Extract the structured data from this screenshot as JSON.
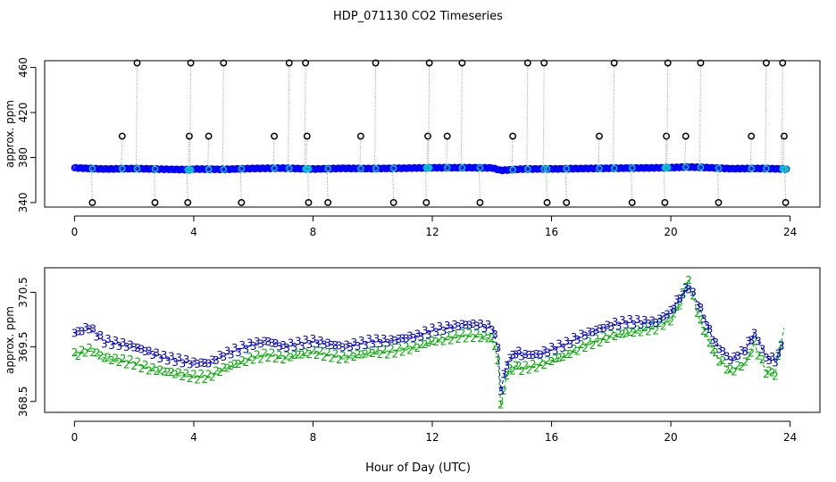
{
  "title": "HDP_071130  CO2 Timeseries",
  "xlabel": "Hour of Day (UTC)",
  "chart_data": [
    {
      "type": "scatter",
      "ylabel": "approx. ppm",
      "xlim": [
        -1,
        25
      ],
      "ylim": [
        336,
        466
      ],
      "x_ticks": [
        "0",
        "4",
        "8",
        "12",
        "16",
        "20",
        "24"
      ],
      "y_ticks": [
        "340",
        "380",
        "420",
        "460"
      ],
      "baseline_series": {
        "name": "",
        "color": "#0000ff",
        "marker": "open-circle",
        "x_range": [
          0,
          23.9
        ],
        "points": [
          [
            0.0,
            370.8
          ],
          [
            1.0,
            369.8
          ],
          [
            2.0,
            370.2
          ],
          [
            3.0,
            369.6
          ],
          [
            3.9,
            369.2
          ],
          [
            4.0,
            369.8
          ],
          [
            5.0,
            369.5
          ],
          [
            6.0,
            370.3
          ],
          [
            7.0,
            370.6
          ],
          [
            7.8,
            369.9
          ],
          [
            8.0,
            369.8
          ],
          [
            9.0,
            370.4
          ],
          [
            10.0,
            370.2
          ],
          [
            11.0,
            370.5
          ],
          [
            12.0,
            370.9
          ],
          [
            13.0,
            371.0
          ],
          [
            14.0,
            370.8
          ],
          [
            14.3,
            368.6
          ],
          [
            15.0,
            369.8
          ],
          [
            16.0,
            369.9
          ],
          [
            17.0,
            370.2
          ],
          [
            18.0,
            370.5
          ],
          [
            19.0,
            370.7
          ],
          [
            20.0,
            371.0
          ],
          [
            20.5,
            371.6
          ],
          [
            21.0,
            371.3
          ],
          [
            22.0,
            370.1
          ],
          [
            23.0,
            370.3
          ],
          [
            23.9,
            369.8
          ]
        ]
      },
      "spikes": [
        {
          "x": 0.6,
          "y": 340
        },
        {
          "x": 1.6,
          "y": 399
        },
        {
          "x": 2.1,
          "y": 464
        },
        {
          "x": 2.7,
          "y": 340
        },
        {
          "x": 3.8,
          "y": 340
        },
        {
          "x": 3.85,
          "y": 399
        },
        {
          "x": 3.9,
          "y": 464
        },
        {
          "x": 4.5,
          "y": 399
        },
        {
          "x": 5.0,
          "y": 464
        },
        {
          "x": 5.6,
          "y": 340
        },
        {
          "x": 6.7,
          "y": 399
        },
        {
          "x": 7.2,
          "y": 464
        },
        {
          "x": 7.75,
          "y": 464
        },
        {
          "x": 7.8,
          "y": 399
        },
        {
          "x": 7.85,
          "y": 340
        },
        {
          "x": 8.5,
          "y": 340
        },
        {
          "x": 9.6,
          "y": 399
        },
        {
          "x": 10.1,
          "y": 464
        },
        {
          "x": 10.7,
          "y": 340
        },
        {
          "x": 11.8,
          "y": 340
        },
        {
          "x": 11.85,
          "y": 399
        },
        {
          "x": 11.9,
          "y": 464
        },
        {
          "x": 12.5,
          "y": 399
        },
        {
          "x": 13.0,
          "y": 464
        },
        {
          "x": 13.6,
          "y": 340
        },
        {
          "x": 14.7,
          "y": 399
        },
        {
          "x": 15.2,
          "y": 464
        },
        {
          "x": 15.75,
          "y": 464
        },
        {
          "x": 15.85,
          "y": 340
        },
        {
          "x": 16.5,
          "y": 340
        },
        {
          "x": 17.6,
          "y": 399
        },
        {
          "x": 18.1,
          "y": 464
        },
        {
          "x": 18.7,
          "y": 340
        },
        {
          "x": 19.8,
          "y": 340
        },
        {
          "x": 19.85,
          "y": 399
        },
        {
          "x": 19.9,
          "y": 464
        },
        {
          "x": 20.5,
          "y": 399
        },
        {
          "x": 21.0,
          "y": 464
        },
        {
          "x": 21.6,
          "y": 340
        },
        {
          "x": 22.7,
          "y": 399
        },
        {
          "x": 23.2,
          "y": 464
        },
        {
          "x": 23.75,
          "y": 464
        },
        {
          "x": 23.8,
          "y": 399
        },
        {
          "x": 23.85,
          "y": 340
        }
      ],
      "colors": {
        "spike_marker": "#000000",
        "spike_line": "#999999",
        "baseline": "#0000ff",
        "highlight": "#00cccc"
      }
    },
    {
      "type": "scatter",
      "ylabel": "approx. ppm",
      "xlim": [
        -1,
        25
      ],
      "ylim": [
        368.3,
        370.95
      ],
      "x_ticks": [
        "0",
        "4",
        "8",
        "12",
        "16",
        "20",
        "24"
      ],
      "y_ticks": [
        "368.5",
        "369.5",
        "370.5"
      ],
      "series": [
        {
          "name": "",
          "marker_text": "3",
          "color": "#0000cc",
          "points": [
            [
              0.0,
              369.75
            ],
            [
              0.5,
              369.85
            ],
            [
              1.0,
              369.6
            ],
            [
              1.5,
              369.55
            ],
            [
              2.0,
              369.5
            ],
            [
              2.5,
              369.4
            ],
            [
              3.0,
              369.3
            ],
            [
              3.5,
              369.25
            ],
            [
              4.0,
              369.2
            ],
            [
              4.5,
              369.2
            ],
            [
              5.0,
              369.35
            ],
            [
              5.5,
              369.45
            ],
            [
              6.0,
              369.55
            ],
            [
              6.5,
              369.6
            ],
            [
              7.0,
              369.5
            ],
            [
              7.5,
              369.55
            ],
            [
              8.0,
              369.6
            ],
            [
              8.5,
              369.55
            ],
            [
              9.0,
              369.5
            ],
            [
              9.5,
              369.55
            ],
            [
              10.0,
              369.6
            ],
            [
              10.5,
              369.6
            ],
            [
              11.0,
              369.65
            ],
            [
              11.5,
              369.7
            ],
            [
              12.0,
              369.8
            ],
            [
              12.5,
              369.85
            ],
            [
              13.0,
              369.9
            ],
            [
              13.5,
              369.9
            ],
            [
              14.0,
              369.85
            ],
            [
              14.2,
              369.5
            ],
            [
              14.3,
              368.7
            ],
            [
              14.5,
              369.2
            ],
            [
              14.8,
              369.4
            ],
            [
              15.0,
              369.35
            ],
            [
              15.5,
              369.35
            ],
            [
              16.0,
              369.45
            ],
            [
              16.5,
              369.55
            ],
            [
              17.0,
              369.7
            ],
            [
              17.5,
              369.8
            ],
            [
              18.0,
              369.9
            ],
            [
              18.5,
              369.95
            ],
            [
              19.0,
              369.95
            ],
            [
              19.5,
              369.95
            ],
            [
              20.0,
              370.15
            ],
            [
              20.3,
              370.4
            ],
            [
              20.6,
              370.6
            ],
            [
              20.9,
              370.3
            ],
            [
              21.2,
              369.9
            ],
            [
              21.5,
              369.55
            ],
            [
              22.0,
              369.25
            ],
            [
              22.5,
              369.45
            ],
            [
              22.8,
              369.75
            ],
            [
              23.2,
              369.3
            ],
            [
              23.5,
              369.25
            ],
            [
              23.8,
              369.6
            ]
          ]
        },
        {
          "name": "",
          "marker_text": "2",
          "color": "#00aa00",
          "points": [
            [
              0.0,
              369.35
            ],
            [
              0.5,
              369.45
            ],
            [
              1.0,
              369.3
            ],
            [
              1.5,
              369.25
            ],
            [
              2.0,
              369.2
            ],
            [
              2.5,
              369.1
            ],
            [
              3.0,
              369.05
            ],
            [
              3.5,
              369.0
            ],
            [
              4.0,
              368.95
            ],
            [
              4.5,
              368.95
            ],
            [
              5.0,
              369.1
            ],
            [
              5.5,
              369.2
            ],
            [
              6.0,
              369.3
            ],
            [
              6.5,
              369.35
            ],
            [
              7.0,
              369.3
            ],
            [
              7.5,
              369.35
            ],
            [
              8.0,
              369.4
            ],
            [
              8.5,
              369.35
            ],
            [
              9.0,
              369.3
            ],
            [
              9.5,
              369.35
            ],
            [
              10.0,
              369.4
            ],
            [
              10.5,
              369.4
            ],
            [
              11.0,
              369.45
            ],
            [
              11.5,
              369.5
            ],
            [
              12.0,
              369.6
            ],
            [
              12.5,
              369.65
            ],
            [
              13.0,
              369.7
            ],
            [
              13.5,
              369.7
            ],
            [
              14.0,
              369.65
            ],
            [
              14.2,
              369.3
            ],
            [
              14.3,
              368.4
            ],
            [
              14.5,
              369.0
            ],
            [
              14.8,
              369.15
            ],
            [
              15.0,
              369.1
            ],
            [
              15.5,
              369.15
            ],
            [
              16.0,
              369.25
            ],
            [
              16.5,
              369.35
            ],
            [
              17.0,
              369.5
            ],
            [
              17.5,
              369.6
            ],
            [
              18.0,
              369.7
            ],
            [
              18.5,
              369.75
            ],
            [
              19.0,
              369.8
            ],
            [
              19.5,
              369.85
            ],
            [
              20.0,
              370.0
            ],
            [
              20.3,
              370.3
            ],
            [
              20.6,
              370.75
            ],
            [
              20.9,
              370.1
            ],
            [
              21.2,
              369.7
            ],
            [
              21.5,
              369.35
            ],
            [
              22.0,
              369.05
            ],
            [
              22.5,
              369.2
            ],
            [
              22.8,
              369.55
            ],
            [
              23.2,
              369.05
            ],
            [
              23.5,
              369.0
            ],
            [
              23.8,
              369.85
            ]
          ]
        }
      ]
    }
  ]
}
